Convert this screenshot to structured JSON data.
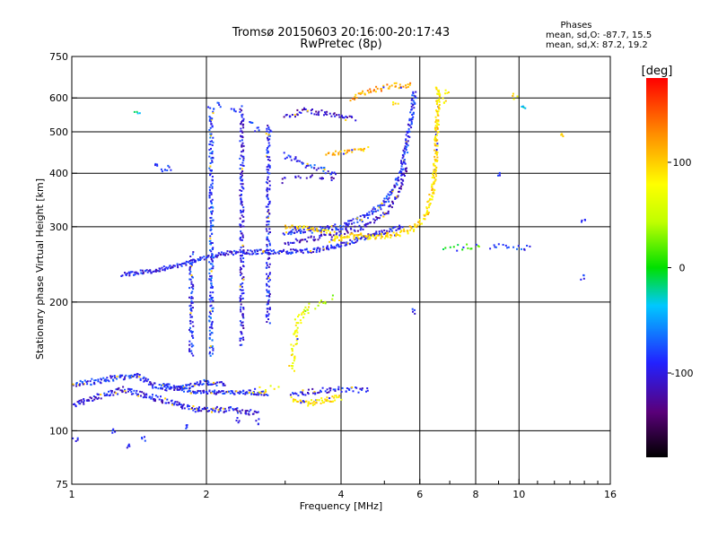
{
  "chart_data": {
    "type": "scatter",
    "title": "Tromsø 20150603 20:16:00-20:17:43",
    "subtitle": "RwPretec (8p)",
    "xlabel": "Frequency [MHz]",
    "ylabel": "Stationary phase Virtual Height [km]",
    "x_scale": "log",
    "y_scale": "log",
    "xlim": [
      1,
      16
    ],
    "ylim": [
      75,
      750
    ],
    "x_ticks": [
      1,
      2,
      4,
      6,
      8,
      10,
      16
    ],
    "y_ticks": [
      75,
      100,
      200,
      300,
      400,
      500,
      600,
      750
    ],
    "x_grid": [
      2,
      4,
      6,
      8,
      10
    ],
    "y_grid": [
      100,
      200,
      300,
      400,
      500,
      600
    ],
    "x_minor": [
      3,
      5,
      7,
      9,
      11,
      12,
      13,
      14,
      15
    ],
    "grid": true,
    "info": {
      "heading": "Phases",
      "line1": "mean, sd,O: -87.7, 15.5",
      "line2": "mean, sd,X:  87.2, 19.2"
    },
    "colorbar": {
      "label": "[deg]",
      "range": [
        -180,
        180
      ],
      "ticks": [
        100,
        0,
        -100
      ]
    },
    "traces": [
      {
        "name": "lowE",
        "phase": -100,
        "spread": 0.02,
        "density": 3,
        "points": [
          [
            1.0,
            115
          ],
          [
            1.3,
            125
          ],
          [
            1.6,
            118
          ],
          [
            1.9,
            112
          ],
          [
            2.3,
            112
          ],
          [
            2.6,
            110
          ]
        ]
      },
      {
        "name": "lowE2",
        "phase": -90,
        "spread": 0.02,
        "density": 3,
        "points": [
          [
            1.0,
            128
          ],
          [
            1.2,
            132
          ],
          [
            1.4,
            135
          ],
          [
            1.5,
            128
          ],
          [
            1.7,
            125
          ],
          [
            2.0,
            130
          ],
          [
            2.2,
            128
          ]
        ]
      },
      {
        "name": "lowE3",
        "phase": -95,
        "spread": 0.015,
        "density": 3,
        "points": [
          [
            1.6,
            128
          ],
          [
            1.9,
            123
          ],
          [
            2.2,
            123
          ],
          [
            2.5,
            123
          ],
          [
            2.75,
            122
          ]
        ]
      },
      {
        "name": "F1trace",
        "phase": -95,
        "spread": 0.015,
        "density": 3,
        "points": [
          [
            1.3,
            232
          ],
          [
            1.5,
            236
          ],
          [
            1.7,
            242
          ],
          [
            1.9,
            250
          ],
          [
            2.2,
            260
          ],
          [
            2.6,
            262
          ],
          [
            3.0,
            262
          ],
          [
            3.5,
            264
          ],
          [
            4.0,
            272
          ],
          [
            4.5,
            283
          ],
          [
            5.0,
            292
          ],
          [
            5.5,
            300
          ]
        ]
      },
      {
        "name": "F2upper",
        "phase": -90,
        "spread": 0.02,
        "density": 3,
        "points": [
          [
            3.0,
            290
          ],
          [
            3.5,
            295
          ],
          [
            4.0,
            300
          ],
          [
            4.5,
            315
          ],
          [
            5.0,
            340
          ],
          [
            5.4,
            390
          ],
          [
            5.6,
            460
          ],
          [
            5.75,
            540
          ],
          [
            5.85,
            620
          ]
        ]
      },
      {
        "name": "F2inner",
        "phase": -110,
        "spread": 0.018,
        "density": 2,
        "points": [
          [
            3.0,
            275
          ],
          [
            3.5,
            282
          ],
          [
            4.0,
            290
          ],
          [
            4.5,
            300
          ],
          [
            5.0,
            320
          ],
          [
            5.4,
            360
          ],
          [
            5.6,
            420
          ]
        ]
      },
      {
        "name": "Xtrace",
        "phase": 95,
        "spread": 0.02,
        "density": 3,
        "points": [
          [
            3.8,
            280
          ],
          [
            4.2,
            285
          ],
          [
            4.6,
            285
          ],
          [
            5.0,
            285
          ],
          [
            5.5,
            290
          ],
          [
            5.9,
            300
          ],
          [
            6.2,
            320
          ],
          [
            6.4,
            360
          ],
          [
            6.5,
            420
          ],
          [
            6.55,
            500
          ],
          [
            6.6,
            600
          ],
          [
            6.55,
            640
          ]
        ]
      },
      {
        "name": "Xlow",
        "phase": 100,
        "spread": 0.015,
        "density": 2,
        "points": [
          [
            3.0,
            300
          ],
          [
            3.2,
            300
          ],
          [
            3.5,
            295
          ],
          [
            3.8,
            290
          ]
        ]
      },
      {
        "name": "X2",
        "phase": 90,
        "spread": 0.02,
        "density": 3,
        "points": [
          [
            3.1,
            118
          ],
          [
            3.4,
            116
          ],
          [
            3.7,
            118
          ],
          [
            4.0,
            120
          ]
        ]
      },
      {
        "name": "X3",
        "phase": 80,
        "spread": 0.03,
        "density": 2,
        "points": [
          [
            3.1,
            140
          ],
          [
            3.15,
            160
          ],
          [
            3.2,
            180
          ],
          [
            3.4,
            195
          ]
        ]
      },
      {
        "name": "X4",
        "phase": 40,
        "spread": 0.03,
        "density": 1,
        "points": [
          [
            3.3,
            190
          ],
          [
            3.6,
            200
          ],
          [
            3.9,
            205
          ]
        ]
      },
      {
        "name": "X5",
        "phase": 110,
        "spread": 0.02,
        "density": 2,
        "points": [
          [
            3.7,
            440
          ],
          [
            4.2,
            450
          ],
          [
            4.6,
            455
          ]
        ]
      },
      {
        "name": "X6",
        "phase": 120,
        "spread": 0.02,
        "density": 2,
        "points": [
          [
            4.2,
            600
          ],
          [
            4.7,
            625
          ],
          [
            5.2,
            640
          ],
          [
            5.8,
            640
          ]
        ]
      },
      {
        "name": "X7",
        "phase": 80,
        "spread": 0.03,
        "density": 1,
        "points": [
          [
            2.5,
            125
          ],
          [
            2.7,
            125
          ],
          [
            2.9,
            125
          ]
        ]
      },
      {
        "name": "O6",
        "phase": -85,
        "spread": 0.02,
        "density": 2,
        "points": [
          [
            3.0,
            440
          ],
          [
            3.3,
            420
          ],
          [
            3.6,
            410
          ],
          [
            3.9,
            400
          ]
        ]
      },
      {
        "name": "O7",
        "phase": -110,
        "spread": 0.02,
        "density": 2,
        "points": [
          [
            3.0,
            540
          ],
          [
            3.3,
            560
          ],
          [
            3.6,
            555
          ],
          [
            4.0,
            545
          ],
          [
            4.3,
            535
          ]
        ]
      },
      {
        "name": "X9",
        "phase": 10,
        "spread": 0.02,
        "density": 1,
        "points": [
          [
            6.8,
            265
          ],
          [
            7.3,
            268
          ],
          [
            7.8,
            270
          ],
          [
            8.3,
            268
          ]
        ]
      },
      {
        "name": "O9",
        "phase": -80,
        "spread": 0.02,
        "density": 1,
        "points": [
          [
            8.6,
            268
          ],
          [
            9.2,
            270
          ],
          [
            9.8,
            268
          ],
          [
            10.8,
            268
          ]
        ]
      },
      {
        "name": "O10",
        "phase": -100,
        "spread": 0.02,
        "density": 2,
        "points": [
          [
            3.1,
            122
          ],
          [
            3.6,
            124
          ],
          [
            4.1,
            125
          ],
          [
            4.6,
            124
          ]
        ]
      },
      {
        "name": "vbandA",
        "phase": -80,
        "spread": 0.02,
        "density": 2,
        "points": [
          [
            2.05,
            150
          ],
          [
            2.05,
            250
          ],
          [
            2.05,
            350
          ],
          [
            2.05,
            460
          ],
          [
            2.05,
            560
          ]
        ]
      },
      {
        "name": "vbandB",
        "phase": -100,
        "spread": 0.02,
        "density": 2,
        "points": [
          [
            2.4,
            160
          ],
          [
            2.4,
            260
          ],
          [
            2.4,
            360
          ],
          [
            2.4,
            460
          ],
          [
            2.4,
            570
          ]
        ]
      },
      {
        "name": "vbandC",
        "phase": -95,
        "spread": 0.02,
        "density": 2,
        "points": [
          [
            2.75,
            180
          ],
          [
            2.75,
            280
          ],
          [
            2.75,
            380
          ],
          [
            2.75,
            520
          ]
        ]
      },
      {
        "name": "vbandD",
        "phase": -90,
        "spread": 0.02,
        "density": 2,
        "points": [
          [
            1.85,
            150
          ],
          [
            1.85,
            200
          ],
          [
            1.85,
            260
          ]
        ]
      }
    ],
    "scatter": [
      {
        "phase": -85,
        "cluster": [
          [
            1.55,
            415
          ],
          [
            1.6,
            410
          ],
          [
            1.65,
            412
          ]
        ]
      },
      {
        "phase": -80,
        "cluster": [
          [
            2.05,
            570
          ],
          [
            2.15,
            580
          ],
          [
            2.3,
            560
          ],
          [
            2.5,
            520
          ],
          [
            2.6,
            505
          ],
          [
            2.8,
            500
          ]
        ]
      },
      {
        "phase": -30,
        "cluster": [
          [
            1.4,
            560
          ],
          [
            10.2,
            570
          ]
        ]
      },
      {
        "phase": -90,
        "cluster": [
          [
            1.02,
            95
          ],
          [
            1.35,
            92
          ],
          [
            1.45,
            96
          ],
          [
            1.8,
            102
          ],
          [
            2.35,
            106
          ],
          [
            2.6,
            105
          ],
          [
            1.25,
            100
          ],
          [
            13.8,
            228
          ],
          [
            14.0,
            312
          ],
          [
            9.0,
            400
          ],
          [
            5.8,
            190
          ]
        ]
      },
      {
        "phase": 90,
        "cluster": [
          [
            6.8,
            590
          ],
          [
            6.9,
            620
          ],
          [
            5.3,
            580
          ],
          [
            9.8,
            605
          ],
          [
            12.5,
            495
          ]
        ]
      },
      {
        "phase": -110,
        "cluster": [
          [
            3.0,
            385
          ],
          [
            3.2,
            390
          ],
          [
            3.4,
            392
          ],
          [
            3.6,
            388
          ],
          [
            3.8,
            386
          ]
        ]
      }
    ]
  }
}
